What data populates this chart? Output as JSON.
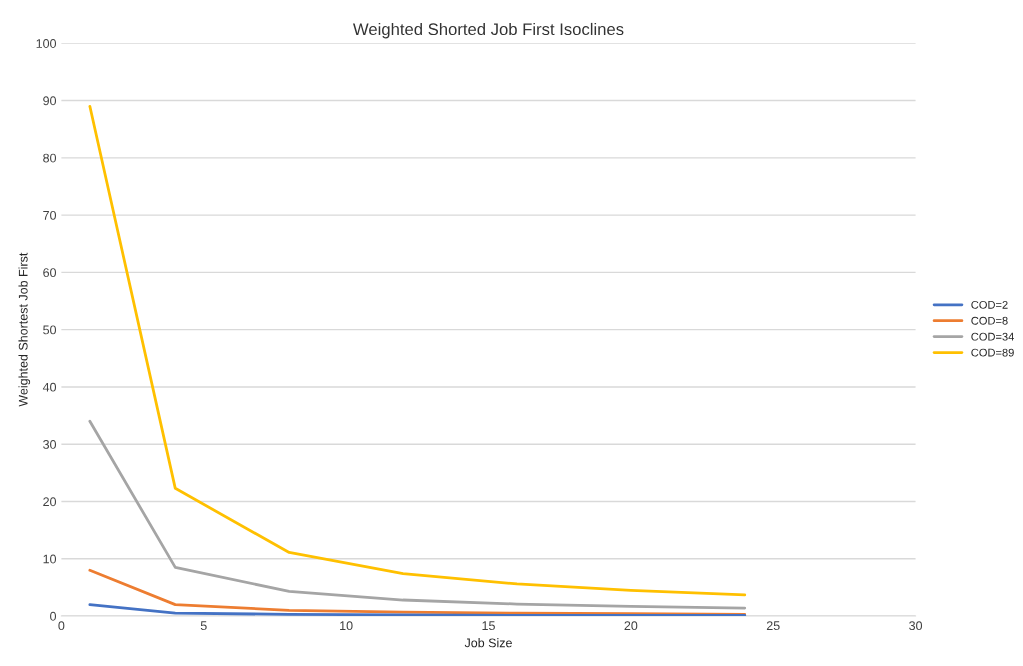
{
  "chart_data": {
    "type": "line",
    "title": "Weighted Shorted Job First Isoclines",
    "xlabel": "Job Size",
    "ylabel": "Weighted Shortest Job First",
    "x": [
      1,
      4,
      8,
      12,
      16,
      20,
      24
    ],
    "series": [
      {
        "name": "COD=2",
        "color": "#4472c4",
        "values": [
          2,
          0.5,
          0.3,
          0.2,
          0.1,
          0.1,
          0.1
        ]
      },
      {
        "name": "COD=8",
        "color": "#ed7d31",
        "values": [
          8,
          2,
          1,
          0.7,
          0.5,
          0.4,
          0.3
        ]
      },
      {
        "name": "COD=34",
        "color": "#a5a5a5",
        "values": [
          34,
          8.5,
          4.3,
          2.8,
          2.1,
          1.7,
          1.4
        ]
      },
      {
        "name": "COD=89",
        "color": "#ffc000",
        "values": [
          89,
          22.3,
          11.1,
          7.4,
          5.6,
          4.5,
          3.7
        ]
      }
    ],
    "xlim": [
      0,
      30
    ],
    "xticks": [
      0,
      5,
      10,
      15,
      20,
      25,
      30
    ],
    "ylim": [
      0,
      100
    ],
    "yticks": [
      0,
      10,
      20,
      30,
      40,
      50,
      60,
      70,
      80,
      90,
      100
    ],
    "grid": "y",
    "legend": "right",
    "marker": "none",
    "line_style": "solid"
  }
}
